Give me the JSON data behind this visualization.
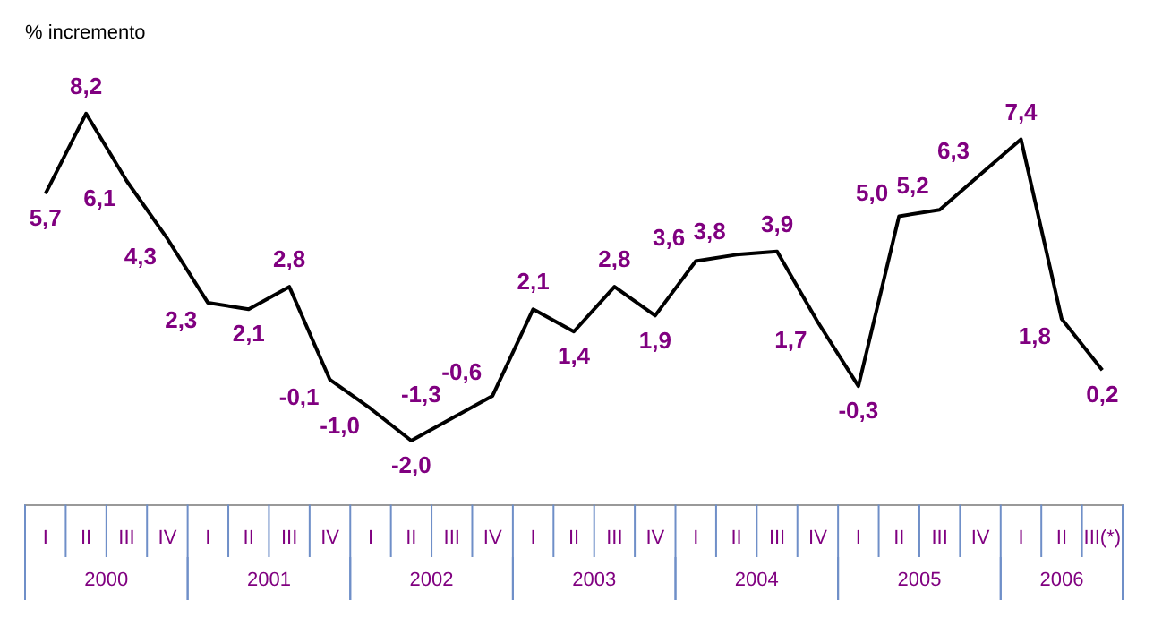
{
  "chart_data": {
    "type": "line",
    "ylabel": "% incremento",
    "categories": [
      "I",
      "II",
      "III",
      "IV",
      "I",
      "II",
      "III",
      "IV",
      "I",
      "II",
      "III",
      "IV",
      "I",
      "II",
      "III",
      "IV",
      "I",
      "II",
      "III",
      "IV",
      "I",
      "II",
      "III",
      "IV",
      "I",
      "II",
      "III(*)"
    ],
    "values": [
      5.7,
      8.2,
      6.1,
      4.3,
      2.3,
      2.1,
      2.8,
      -0.1,
      -1.0,
      -2.0,
      -1.3,
      -0.6,
      2.1,
      1.4,
      2.8,
      1.9,
      3.6,
      3.8,
      3.9,
      1.7,
      -0.3,
      5.0,
      5.2,
      6.3,
      7.4,
      1.8,
      0.2
    ],
    "value_labels": [
      "5,7",
      "8,2",
      "6,1",
      "4,3",
      "2,3",
      "2,1",
      "2,8",
      "-0,1",
      "-1,0",
      "-2,0",
      "-1,3",
      "-0,6",
      "2,1",
      "1,4",
      "2,8",
      "1,9",
      "3,6",
      "3,8",
      "3,9",
      "1,7",
      "-0,3",
      "5,0",
      "5,2",
      "6,3",
      "7,4",
      "1,8",
      "0,2"
    ],
    "color": "#000000",
    "annotations": [
      "2000",
      "2001",
      "2002",
      "2003",
      "2004",
      "2005",
      "2006"
    ],
    "tick_labels": "x",
    "marker": "none",
    "legend": false
  }
}
